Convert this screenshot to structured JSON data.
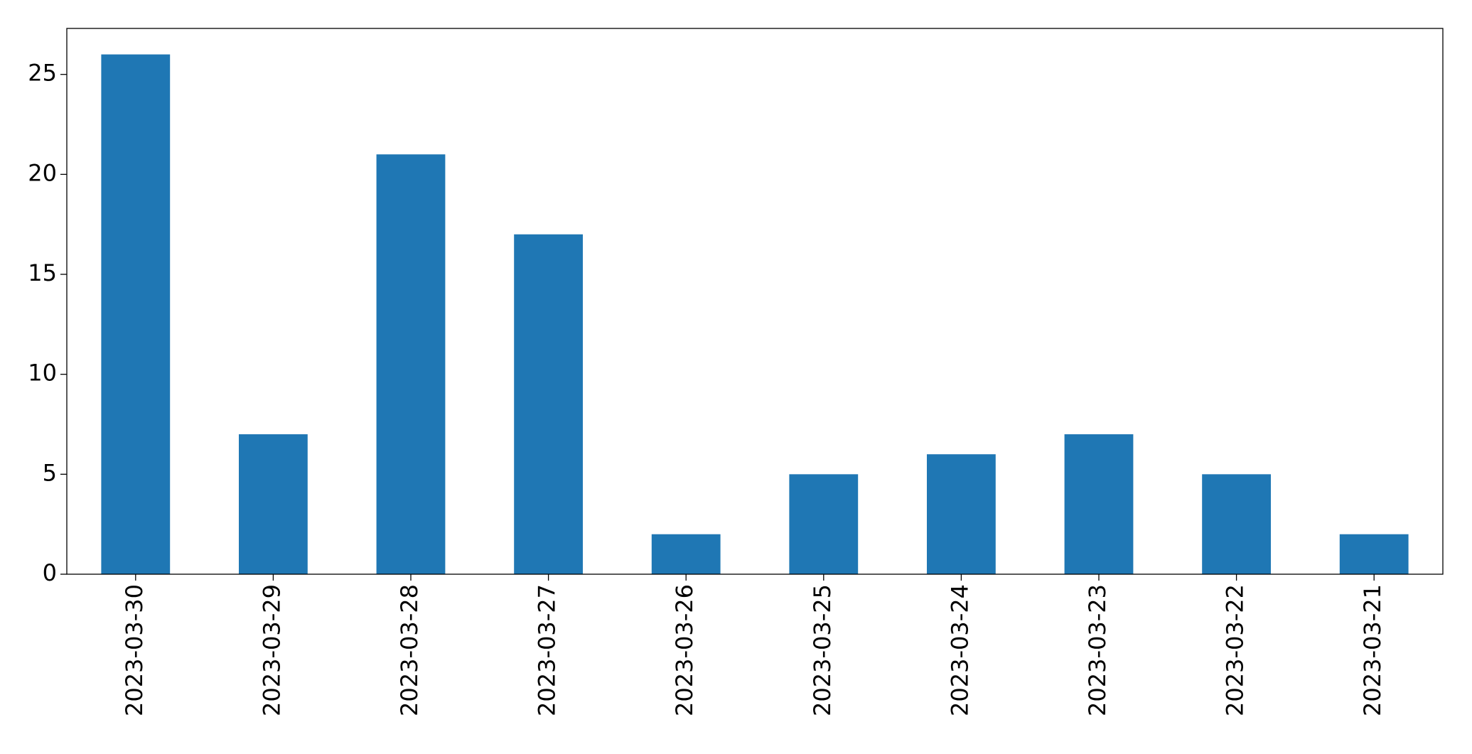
{
  "chart_data": {
    "type": "bar",
    "categories": [
      "2023-03-30",
      "2023-03-29",
      "2023-03-28",
      "2023-03-27",
      "2023-03-26",
      "2023-03-25",
      "2023-03-24",
      "2023-03-23",
      "2023-03-22",
      "2023-03-21"
    ],
    "values": [
      26,
      7,
      21,
      17,
      2,
      5,
      6,
      7,
      5,
      2
    ],
    "color": "#1f77b4",
    "ylim": [
      0,
      27.3
    ],
    "yticks": [
      0,
      5,
      10,
      15,
      20,
      25
    ],
    "grid": false
  }
}
